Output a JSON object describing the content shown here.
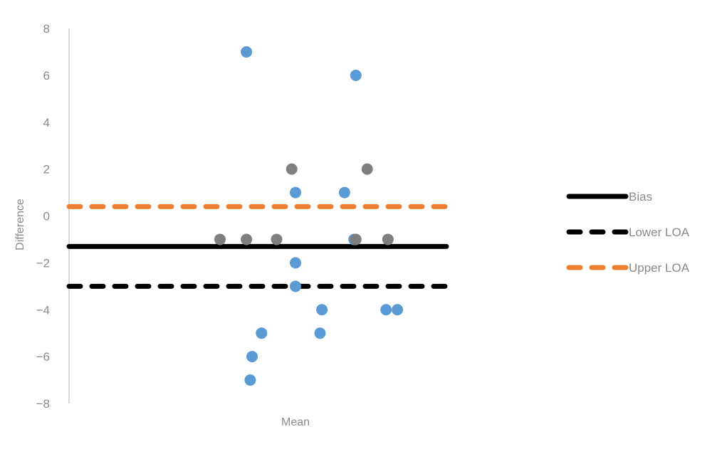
{
  "chart_data": {
    "type": "scatter",
    "xlabel": "Mean",
    "ylabel": "Difference",
    "ylim": [
      -8,
      8
    ],
    "yticks": [
      -8,
      -6,
      -4,
      -2,
      0,
      2,
      4,
      6,
      8
    ],
    "x_axis_ticks_shown": false,
    "grid": false,
    "legend_position": "right",
    "x_range": [
      0,
      100
    ],
    "series": [
      {
        "color": "#5b9bd5",
        "points": [
          {
            "x": 47,
            "y": 7
          },
          {
            "x": 76,
            "y": 6
          },
          {
            "x": 60,
            "y": 1
          },
          {
            "x": 73,
            "y": 1
          },
          {
            "x": 75.5,
            "y": -1
          },
          {
            "x": 60,
            "y": -2
          },
          {
            "x": 60,
            "y": -3
          },
          {
            "x": 67,
            "y": -4
          },
          {
            "x": 84,
            "y": -4
          },
          {
            "x": 87,
            "y": -4
          },
          {
            "x": 51,
            "y": -5
          },
          {
            "x": 66.5,
            "y": -5
          },
          {
            "x": 48.5,
            "y": -6
          },
          {
            "x": 48,
            "y": -7
          }
        ]
      },
      {
        "color": "#7f7f7f",
        "points": [
          {
            "x": 59,
            "y": 2
          },
          {
            "x": 79,
            "y": 2
          },
          {
            "x": 40,
            "y": -1
          },
          {
            "x": 47,
            "y": -1
          },
          {
            "x": 55,
            "y": -1
          },
          {
            "x": 76,
            "y": -1
          },
          {
            "x": 84.5,
            "y": -1
          }
        ]
      }
    ],
    "lines": [
      {
        "name": "Bias",
        "y": -1.3,
        "color": "#000000",
        "style": "solid"
      },
      {
        "name": "Lower LOA",
        "y": -3.0,
        "color": "#000000",
        "style": "dashed"
      },
      {
        "name": "Upper LOA",
        "y": 0.4,
        "color": "#ed7d31",
        "style": "dashed"
      }
    ]
  }
}
